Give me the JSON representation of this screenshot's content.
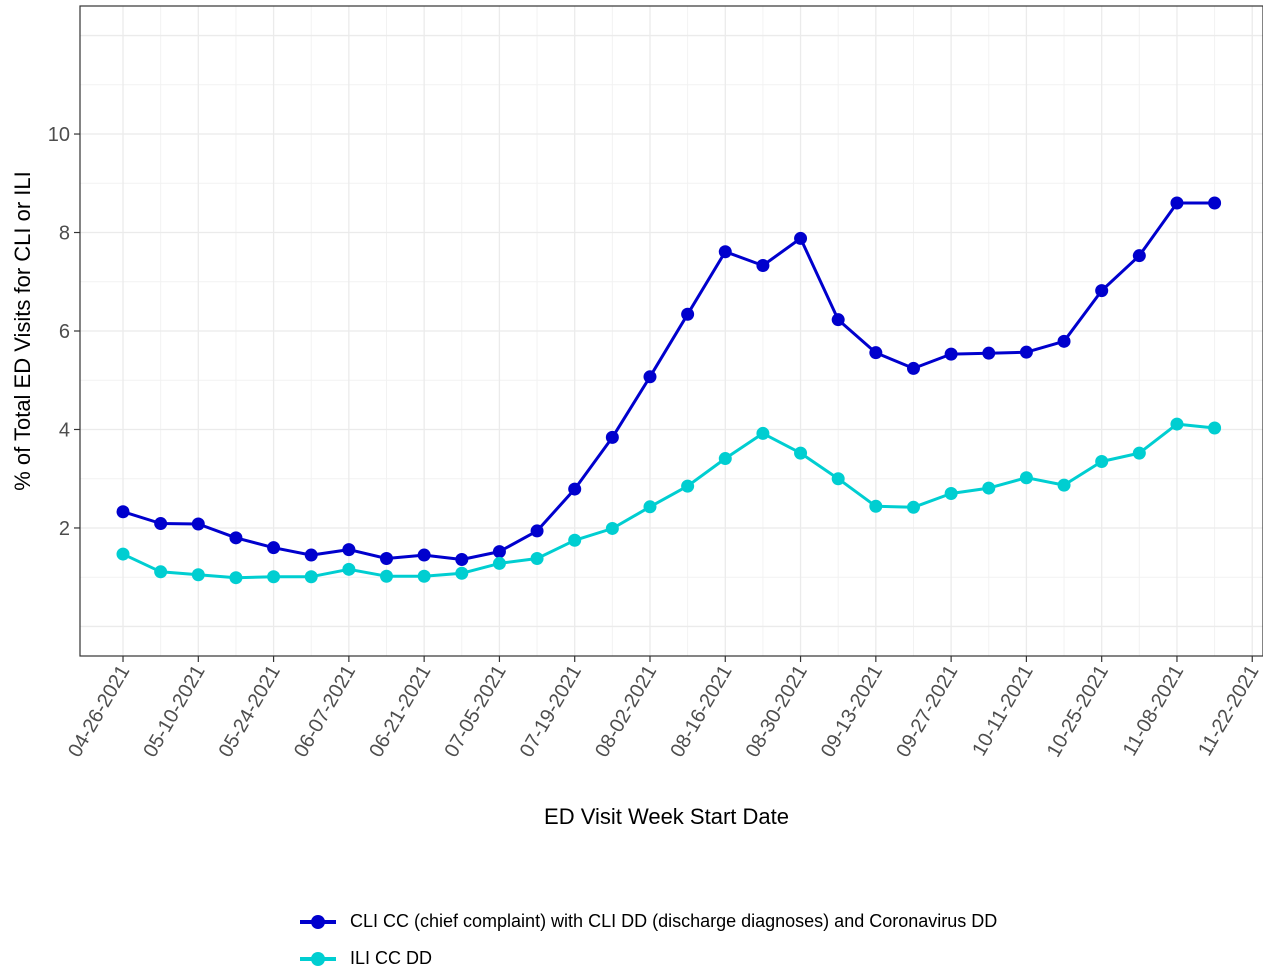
{
  "chart_data": {
    "type": "line",
    "xlabel": "ED Visit Week Start Date",
    "ylabel": "% of Total ED Visits for CLI or ILI",
    "x_ticks": [
      "04-26-2021",
      "05-10-2021",
      "05-24-2021",
      "06-07-2021",
      "06-21-2021",
      "07-05-2021",
      "07-19-2021",
      "08-02-2021",
      "08-16-2021",
      "08-30-2021",
      "09-13-2021",
      "09-27-2021",
      "10-11-2021",
      "10-25-2021",
      "11-08-2021",
      "11-22-2021"
    ],
    "y_ticks": [
      2,
      4,
      6,
      8,
      10
    ],
    "ylim": [
      -0.6,
      12.6
    ],
    "xlim": [
      "04-18-2021",
      "11-24-2021"
    ],
    "grid": true,
    "legend_position": "bottom",
    "x": [
      "04-26-2021",
      "05-03-2021",
      "05-10-2021",
      "05-17-2021",
      "05-24-2021",
      "05-31-2021",
      "06-07-2021",
      "06-14-2021",
      "06-21-2021",
      "06-28-2021",
      "07-05-2021",
      "07-12-2021",
      "07-19-2021",
      "07-26-2021",
      "08-02-2021",
      "08-09-2021",
      "08-16-2021",
      "08-23-2021",
      "08-30-2021",
      "09-06-2021",
      "09-13-2021",
      "09-20-2021",
      "09-27-2021",
      "10-04-2021",
      "10-11-2021",
      "10-18-2021",
      "10-25-2021",
      "11-01-2021",
      "11-08-2021",
      "11-15-2021"
    ],
    "series": [
      {
        "name": "CLI CC (chief complaint) with CLI DD (discharge diagnoses) and Coronavirus DD",
        "color": "#0000cd",
        "values": [
          2.33,
          2.09,
          2.08,
          1.8,
          1.6,
          1.45,
          1.56,
          1.38,
          1.45,
          1.36,
          1.52,
          1.94,
          2.79,
          3.84,
          5.07,
          6.34,
          7.61,
          7.33,
          7.88,
          6.23,
          5.56,
          5.24,
          5.53,
          5.55,
          5.57,
          5.79,
          6.82,
          7.53,
          8.6,
          8.6
        ]
      },
      {
        "name": "ILI CC DD",
        "color": "#00ced1",
        "values": [
          1.47,
          1.11,
          1.05,
          0.99,
          1.01,
          1.01,
          1.16,
          1.02,
          1.02,
          1.08,
          1.28,
          1.38,
          1.75,
          1.99,
          2.43,
          2.85,
          3.41,
          3.92,
          3.52,
          3.0,
          2.44,
          2.42,
          2.7,
          2.81,
          3.02,
          2.87,
          3.35,
          3.52,
          4.11,
          4.03
        ]
      }
    ]
  }
}
